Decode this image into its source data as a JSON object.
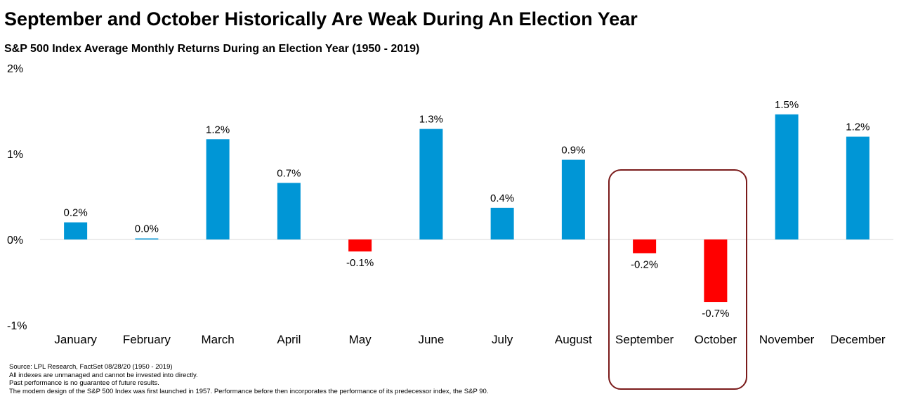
{
  "title": "September and October Historically Are Weak During An Election Year",
  "subtitle": "S&P 500 Index Average Monthly Returns During an Election Year (1950 - 2019)",
  "colors": {
    "positive": "#0096D6",
    "negative": "#FF0000",
    "highlight_border": "#7A1A1A"
  },
  "chart_data": {
    "type": "bar",
    "categories": [
      "January",
      "February",
      "March",
      "April",
      "May",
      "June",
      "July",
      "August",
      "September",
      "October",
      "November",
      "December"
    ],
    "values": [
      0.2,
      0.01,
      1.17,
      0.66,
      -0.14,
      1.29,
      0.37,
      0.93,
      -0.16,
      -0.73,
      1.46,
      1.2
    ],
    "data_labels": [
      "0.2%",
      "0.0%",
      "1.2%",
      "0.7%",
      "-0.1%",
      "1.3%",
      "0.4%",
      "0.9%",
      "-0.2%",
      "-0.7%",
      "1.5%",
      "1.2%"
    ],
    "highlighted": [
      "September",
      "October"
    ],
    "ylim": [
      -1,
      2
    ],
    "yticks": [
      2,
      1,
      0,
      -1
    ],
    "ytick_labels": [
      "2%",
      "1%",
      "0%",
      "-1%"
    ],
    "grid": false,
    "xlabel": "",
    "ylabel": ""
  },
  "footnotes": [
    "Source: LPL Research, FactSet 08/28/20 (1950 - 2019)",
    "All indexes are unmanaged and cannot be invested into directly.",
    "Past performance is no guarantee of future results.",
    "The modern design of the S&P 500 Index was first launched in 1957. Performance before then incorporates the performance of its predecessor index, the S&P 90."
  ]
}
